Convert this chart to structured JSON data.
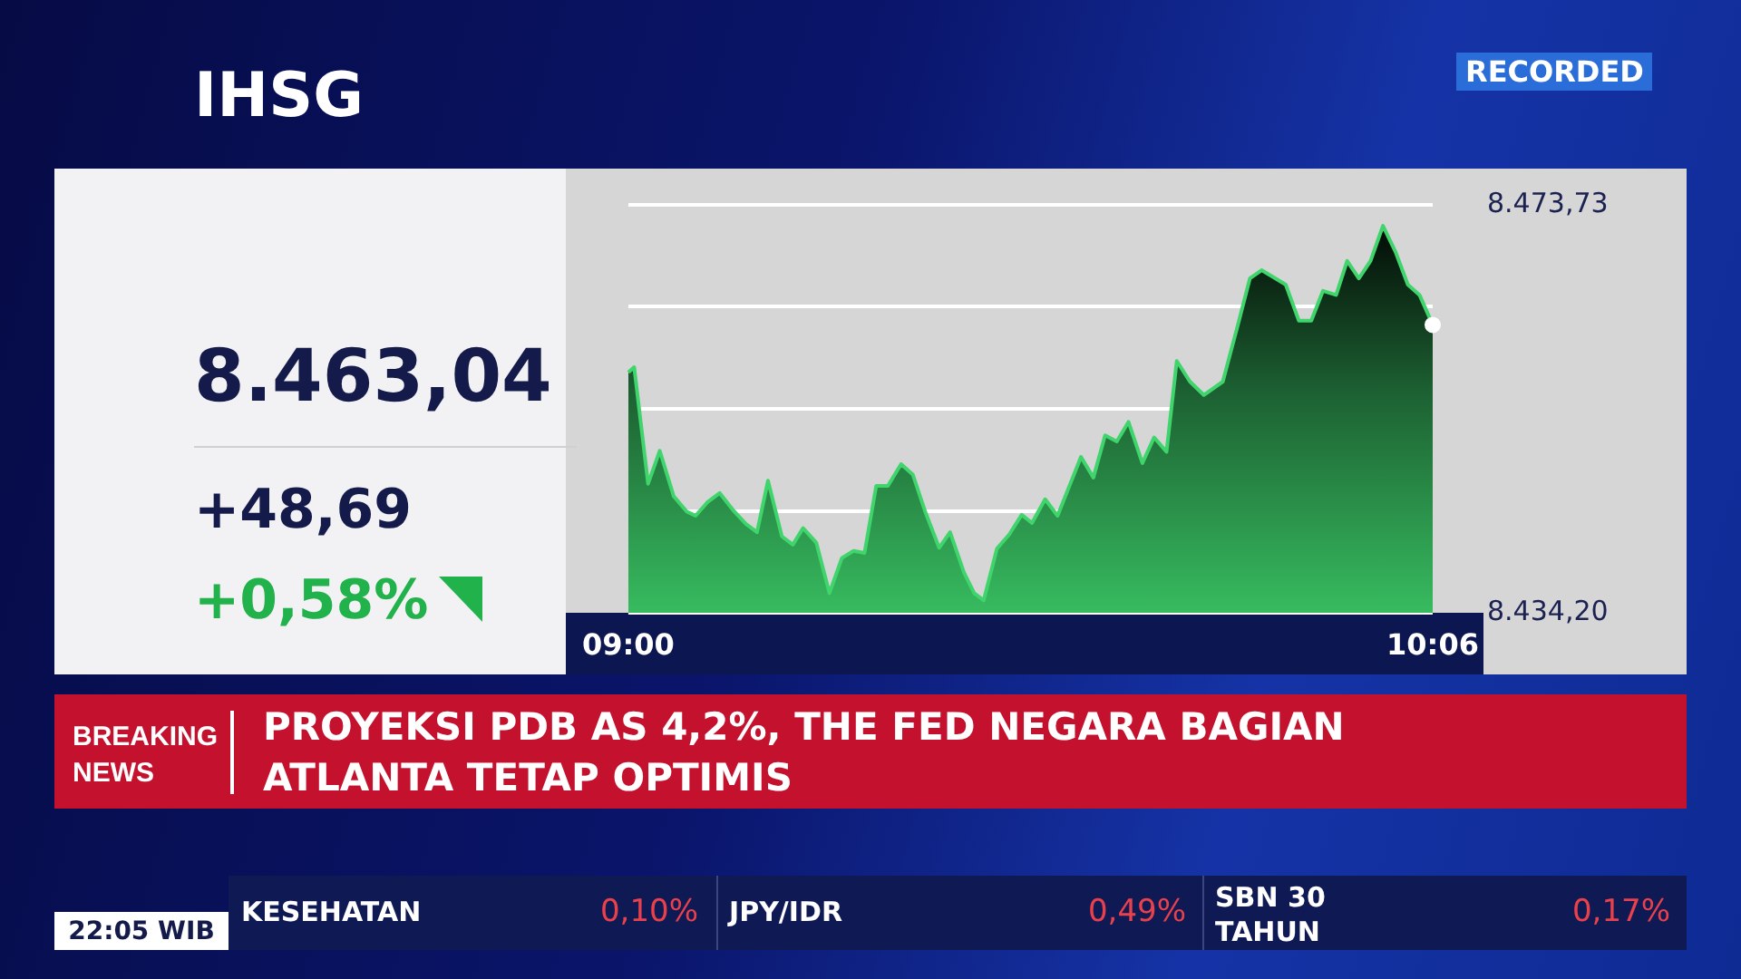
{
  "chart_data": {
    "type": "area",
    "title": "IHSG",
    "x": [
      9.0,
      9.008,
      9.027,
      9.043,
      9.062,
      9.08,
      9.092,
      9.108,
      9.125,
      9.145,
      9.161,
      9.176,
      9.191,
      9.21,
      9.225,
      9.239,
      9.257,
      9.275,
      9.292,
      9.308,
      9.323,
      9.339,
      9.355,
      9.373,
      9.389,
      9.406,
      9.425,
      9.44,
      9.459,
      9.473,
      9.486,
      9.504,
      9.521,
      9.538,
      9.552,
      9.57,
      9.587,
      9.619,
      9.636,
      9.652,
      9.668,
      9.684,
      9.703,
      9.719,
      9.736,
      9.75,
      9.768,
      9.787,
      9.813,
      9.834,
      9.85,
      9.866,
      9.899,
      9.917,
      9.934,
      9.95,
      9.968,
      9.983,
      9.999,
      10.015,
      10.032,
      10.049,
      10.066,
      10.082,
      10.1
    ],
    "values": [
      8457.5,
      8458.0,
      8446.7,
      8449.9,
      8445.5,
      8444.0,
      8443.6,
      8444.9,
      8445.8,
      8444.0,
      8442.8,
      8442.0,
      8447.0,
      8441.6,
      8440.8,
      8442.4,
      8441.0,
      8436.1,
      8439.5,
      8440.2,
      8440.0,
      8446.5,
      8446.5,
      8448.6,
      8447.6,
      8444.0,
      8440.5,
      8442.0,
      8438.1,
      8436.1,
      8435.4,
      8440.4,
      8441.8,
      8443.7,
      8442.9,
      8445.2,
      8443.6,
      8449.3,
      8447.3,
      8451.4,
      8450.8,
      8452.7,
      8448.7,
      8451.2,
      8449.8,
      8458.6,
      8456.6,
      8455.3,
      8456.6,
      8462.2,
      8466.6,
      8467.4,
      8466.0,
      8462.5,
      8462.5,
      8465.4,
      8465.0,
      8468.3,
      8466.6,
      8468.3,
      8471.7,
      8469.2,
      8466.0,
      8465.0,
      8462.1
    ],
    "color": "#3fd46c",
    "xlim": [
      9,
      10.1
    ],
    "xticks": [
      {
        "value": 9,
        "label": "09:00"
      },
      {
        "value": 10.1,
        "label": "10:06"
      }
    ],
    "ylim": [
      8434.2,
      8473.73
    ],
    "yticks": [
      {
        "value": 8434.2,
        "label": "8.434,20"
      },
      {
        "value": 8444.08,
        "label": null
      },
      {
        "value": 8453.97,
        "label": null
      },
      {
        "value": 8463.85,
        "label": null
      },
      {
        "value": 8473.73,
        "label": "8.473,73"
      }
    ],
    "grid": "y",
    "annotations": [
      "8.463,04",
      "+48,69",
      "+0,58%",
      "RECORDED",
      "BREAKING NEWS",
      "PROYEKSI PDB AS 4,2%, THE FED NEGARA BAGIAN ATLANTA TETAP OPTIMIS",
      "KESEHATAN",
      "0,10%",
      "JPY/IDR",
      "0,49%",
      "SBN 30 TAHUN",
      "0,17%",
      "22:05 WIB"
    ]
  }
}
